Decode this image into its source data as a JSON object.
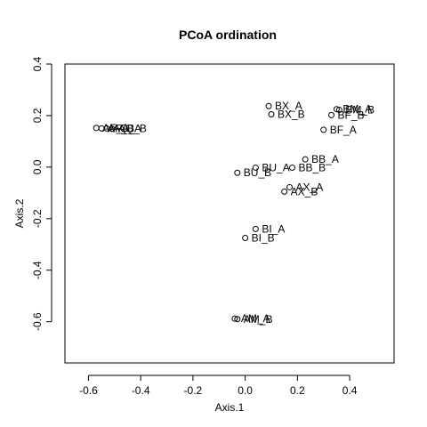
{
  "chart_data": {
    "type": "scatter",
    "title": "PCoA ordination",
    "xlabel": "Axis.1",
    "ylabel": "Axis.2",
    "xlim": [
      -0.69,
      0.57
    ],
    "ylim": [
      -0.76,
      0.4
    ],
    "xticks": [
      "-0.6",
      "-0.4",
      "-0.2",
      "0.0",
      "0.2",
      "0.4"
    ],
    "yticks": [
      "-0.6",
      "-0.4",
      "-0.2",
      "0.0",
      "0.2",
      "0.4"
    ],
    "grid": false,
    "points": [
      {
        "x": 0.09,
        "y": 0.237,
        "label": "BX_A"
      },
      {
        "x": 0.1,
        "y": 0.205,
        "label": "BX_B"
      },
      {
        "x": 0.35,
        "y": 0.225,
        "label": "BM_A"
      },
      {
        "x": 0.36,
        "y": 0.222,
        "label": "BM_B"
      },
      {
        "x": 0.33,
        "y": 0.202,
        "label": "BF_B"
      },
      {
        "x": 0.3,
        "y": 0.145,
        "label": "BF_A"
      },
      {
        "x": -0.57,
        "y": 0.152,
        "label": "AF_A"
      },
      {
        "x": -0.55,
        "y": 0.15,
        "label": "AF_B"
      },
      {
        "x": -0.53,
        "y": 0.15,
        "label": "AQ_A"
      },
      {
        "x": -0.51,
        "y": 0.149,
        "label": "AQ_B"
      },
      {
        "x": 0.23,
        "y": 0.03,
        "label": "BB_A"
      },
      {
        "x": 0.18,
        "y": -0.002,
        "label": "BB_B"
      },
      {
        "x": 0.04,
        "y": -0.002,
        "label": "BU_A"
      },
      {
        "x": -0.03,
        "y": -0.022,
        "label": "BU_B"
      },
      {
        "x": 0.17,
        "y": -0.078,
        "label": "AX_A"
      },
      {
        "x": 0.15,
        "y": -0.095,
        "label": "AX_B"
      },
      {
        "x": 0.04,
        "y": -0.24,
        "label": "BI_A"
      },
      {
        "x": 0.0,
        "y": -0.275,
        "label": "BI_B"
      },
      {
        "x": -0.04,
        "y": -0.588,
        "label": "AM_A"
      },
      {
        "x": -0.03,
        "y": -0.59,
        "label": "AM_B"
      }
    ]
  }
}
